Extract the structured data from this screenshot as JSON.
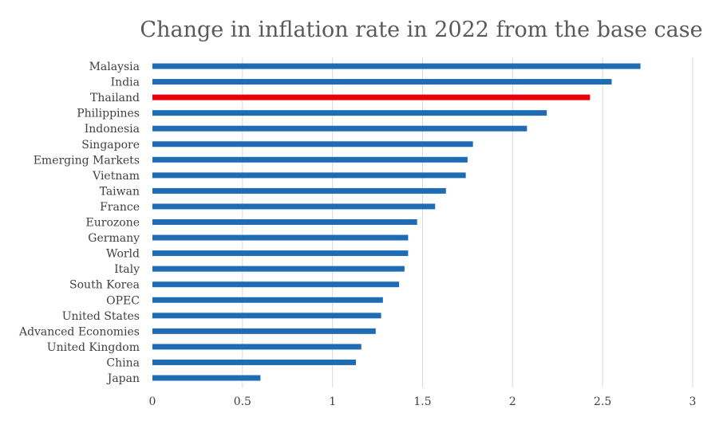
{
  "chart_data": {
    "type": "bar",
    "orientation": "horizontal",
    "title": "Change in inflation rate in 2022 from the base case",
    "xlabel": "",
    "ylabel": "",
    "xlim": [
      0,
      3
    ],
    "x_ticks": [
      "0",
      "0.5",
      "1",
      "1.5",
      "2",
      "2.5",
      "3"
    ],
    "grid": "vertical",
    "legend": "none",
    "colors": {
      "default": "#1f6cb4",
      "highlight": "#e8000b",
      "grid": "#d9d9d9",
      "title": "#595959",
      "labels": "#404040"
    },
    "highlight_category": "Thailand",
    "categories": [
      "Malaysia",
      "India",
      "Thailand",
      "Philippines",
      "Indonesia",
      "Singapore",
      "Emerging Markets",
      "Vietnam",
      "Taiwan",
      "France",
      "Eurozone",
      "Germany",
      "World",
      "Italy",
      "South Korea",
      "OPEC",
      "United States",
      "Advanced Economies",
      "United Kingdom",
      "China",
      "Japan"
    ],
    "values": [
      2.71,
      2.55,
      2.43,
      2.19,
      2.08,
      1.78,
      1.75,
      1.74,
      1.63,
      1.57,
      1.47,
      1.42,
      1.42,
      1.4,
      1.37,
      1.28,
      1.27,
      1.24,
      1.16,
      1.13,
      0.6
    ]
  }
}
